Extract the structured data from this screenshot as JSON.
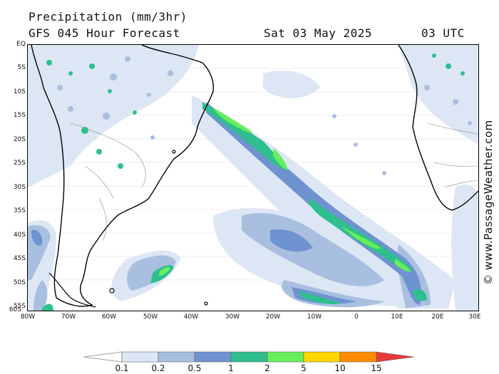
{
  "header": {
    "title": "Precipitation (mm/3hr)",
    "model_line": "GFS 045 Hour Forecast",
    "date": "Sat 03 May 2025",
    "time": "03 UTC"
  },
  "credit": "© www.PassageWeather.com",
  "axes": {
    "lat_labels": [
      "EQ",
      "5S",
      "10S",
      "15S",
      "20S",
      "25S",
      "30S",
      "35S",
      "40S",
      "45S",
      "50S",
      "55S",
      "60S"
    ],
    "lon_labels": [
      "80W",
      "70W",
      "60W",
      "50W",
      "40W",
      "30W",
      "20W",
      "10W",
      "0",
      "10E",
      "20E",
      "30E"
    ]
  },
  "colorbar": {
    "labels": [
      "0.1",
      "0.2",
      "0.5",
      "1",
      "2",
      "5",
      "10",
      "15"
    ],
    "colors": [
      "#ffffff",
      "#dde6f4",
      "#a9bfe0",
      "#6f92d0",
      "#2fbf8f",
      "#67ee5a",
      "#ffd700",
      "#ff8c00",
      "#e8393a"
    ]
  },
  "legend_colors": {
    "light": "#dde6f4",
    "medium": "#a9bfe0",
    "blue": "#6f92d0",
    "teal": "#2fbf8f",
    "green": "#67ee5a"
  }
}
